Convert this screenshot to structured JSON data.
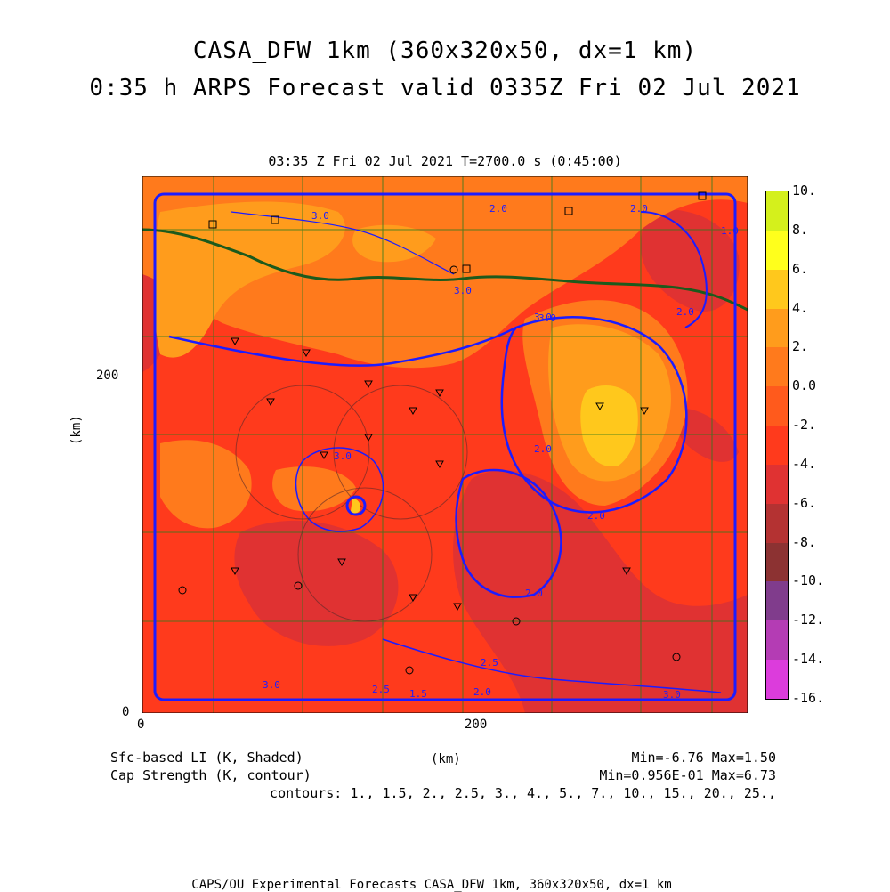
{
  "header": {
    "title_line1": "CASA_DFW 1km (360x320x50, dx=1 km)",
    "title_line2": "0:35 h ARPS Forecast valid 0335Z Fri 02 Jul 2021"
  },
  "plot": {
    "time_label": "03:35 Z Fri 02 Jul 2021    T=2700.0 s (0:45:00)",
    "x_label": "(km)",
    "y_label": "(km)",
    "x_ticks": [
      "0",
      "200"
    ],
    "y_ticks": [
      "0",
      "200"
    ],
    "contour_labels": [
      "3.0",
      "2.0",
      "3.0",
      "3.0",
      "2.0",
      "3.0",
      "2.0",
      "2.0",
      "2.0",
      "2.5",
      "3.0",
      "2.5",
      "1.5",
      "2.0",
      "3.0",
      "1.0",
      "2.0",
      "3.0"
    ]
  },
  "colorbar": {
    "labels": [
      "10.",
      "8.",
      "6.",
      "4.",
      "2.",
      "0.0",
      "-2.",
      "-4.",
      "-6.",
      "-8.",
      "-10.",
      "-12.",
      "-14.",
      "-16."
    ],
    "colors": [
      "#a8e01c",
      "#d4f01c",
      "#ffff1c",
      "#ffc81c",
      "#ff9c1c",
      "#ff7a1c",
      "#ff5a1c",
      "#ff3a1c",
      "#e03232",
      "#b43232",
      "#8c3232",
      "#803c8c",
      "#b43cb4",
      "#dc3cdc"
    ]
  },
  "legend": {
    "shaded": "Sfc-based LI (K, Shaded)",
    "contour": "Cap Strength (K, contour)",
    "units": "(km)",
    "shaded_range": "Min=-6.76 Max=1.50",
    "contour_range": "Min=0.956E-01 Max=6.73",
    "contours": "contours: 1., 1.5, 2., 2.5, 3., 4., 5., 7., 10., 15., 20., 25.,"
  },
  "footer": {
    "credit": "CAPS/OU Experimental Forecasts  CASA_DFW 1km, 360x320x50, dx=1 km"
  }
}
